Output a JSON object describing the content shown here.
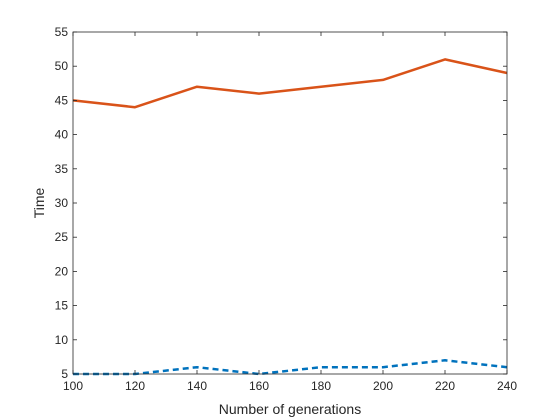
{
  "chart_data": {
    "type": "line",
    "xlabel": "Number of generations",
    "ylabel": "Time",
    "xlim": [
      100,
      240
    ],
    "ylim": [
      5,
      55
    ],
    "x_ticks": [
      100,
      120,
      140,
      160,
      180,
      200,
      220,
      240
    ],
    "y_ticks": [
      5,
      10,
      15,
      20,
      25,
      30,
      35,
      40,
      45,
      50,
      55
    ],
    "grid": false,
    "x": [
      100,
      120,
      140,
      160,
      180,
      200,
      220,
      240
    ],
    "series": [
      {
        "values": [
          45,
          44,
          47,
          46,
          47,
          48,
          51,
          49
        ],
        "color": "#D95319",
        "style": "solid"
      },
      {
        "values": [
          5,
          5,
          6,
          5,
          6,
          6,
          7,
          6
        ],
        "color": "#0072BD",
        "style": "dashed"
      }
    ]
  }
}
